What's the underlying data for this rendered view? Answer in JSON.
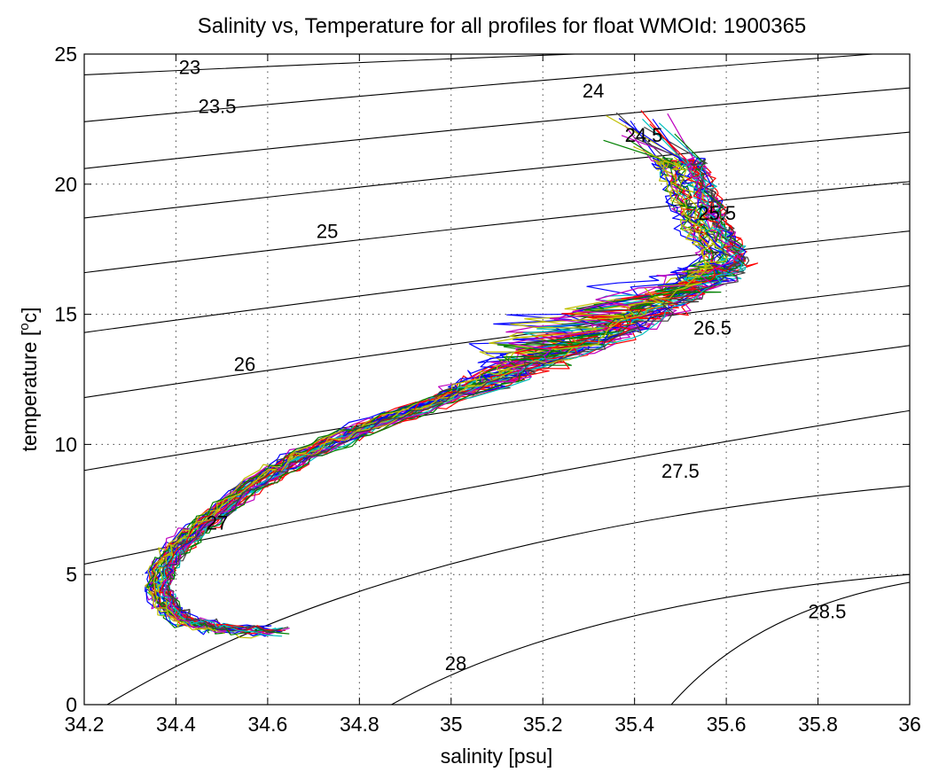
{
  "chart_data": {
    "type": "line",
    "title": "Salinity vs, Temperature for all profiles for float WMOId: 1900365",
    "xlabel": "salinity [psu]",
    "ylabel_main": "temperature [",
    "ylabel_sup": "o",
    "ylabel_tail": "c]",
    "xlim": [
      34.2,
      36
    ],
    "ylim": [
      0,
      25
    ],
    "x_ticks": [
      34.2,
      34.4,
      34.6,
      34.8,
      35,
      35.2,
      35.4,
      35.6,
      35.8,
      36
    ],
    "x_tick_labels": [
      "34.2",
      "34.4",
      "34.6",
      "34.8",
      "35",
      "35.2",
      "35.4",
      "35.6",
      "35.8",
      "36"
    ],
    "y_ticks": [
      0,
      5,
      10,
      15,
      20,
      25
    ],
    "y_tick_labels": [
      "0",
      "5",
      "10",
      "15",
      "20",
      "25"
    ],
    "grid": true,
    "contours": [
      {
        "level": "23",
        "label_at": [
          34.43,
          24.5
        ]
      },
      {
        "level": "23.5",
        "label_at": [
          34.49,
          23.0
        ]
      },
      {
        "level": "24",
        "label_at": [
          35.31,
          23.6
        ]
      },
      {
        "level": "24.5",
        "label_at": [
          35.42,
          21.9
        ]
      },
      {
        "level": "25",
        "label_at": [
          34.73,
          18.2
        ]
      },
      {
        "level": "25.5",
        "label_at": [
          35.58,
          18.9
        ]
      },
      {
        "level": "26",
        "label_at": [
          34.55,
          13.1
        ]
      },
      {
        "level": "26.5",
        "label_at": [
          35.57,
          14.5
        ]
      },
      {
        "level": "27",
        "label_at": [
          34.49,
          7.0
        ]
      },
      {
        "level": "27.5",
        "label_at": [
          35.5,
          9.0
        ]
      },
      {
        "level": "28",
        "label_at": [
          35.01,
          1.6
        ]
      },
      {
        "level": "28.5",
        "label_at": [
          35.82,
          3.6
        ]
      }
    ],
    "isopycnals_left_edge": [
      [
        34.2,
        24.2
      ],
      [
        34.2,
        22.4
      ],
      [
        34.2,
        20.6
      ],
      [
        34.2,
        18.7
      ],
      [
        34.2,
        16.6
      ],
      [
        34.2,
        14.3
      ],
      [
        34.2,
        11.8
      ],
      [
        34.2,
        9.0
      ],
      [
        34.2,
        5.4
      ],
      [
        34.25,
        0
      ],
      [
        34.87,
        0
      ],
      [
        35.48,
        0
      ]
    ],
    "isopycnals_right_edge": [
      [
        35.27,
        25.0
      ],
      [
        35.92,
        25.0
      ],
      [
        36,
        23.7
      ],
      [
        36,
        22.0
      ],
      [
        36,
        20.1
      ],
      [
        36,
        18.2
      ],
      [
        36,
        16.1
      ],
      [
        36,
        13.8
      ],
      [
        36,
        11.3
      ],
      [
        36,
        8.4
      ],
      [
        36,
        5.0
      ],
      [
        36,
        4.7
      ]
    ],
    "mean_profile": [
      [
        34.62,
        2.8
      ],
      [
        34.5,
        2.9
      ],
      [
        34.42,
        3.2
      ],
      [
        34.38,
        3.8
      ],
      [
        34.36,
        4.5
      ],
      [
        34.37,
        5.2
      ],
      [
        34.4,
        6.0
      ],
      [
        34.45,
        6.8
      ],
      [
        34.52,
        7.8
      ],
      [
        34.6,
        8.8
      ],
      [
        34.68,
        9.6
      ],
      [
        34.78,
        10.4
      ],
      [
        34.9,
        11.2
      ],
      [
        35.02,
        12.0
      ],
      [
        35.13,
        12.8
      ],
      [
        35.24,
        13.5
      ],
      [
        35.34,
        14.2
      ],
      [
        35.43,
        15.0
      ],
      [
        35.51,
        15.8
      ],
      [
        35.57,
        16.5
      ],
      [
        35.6,
        17.0
      ],
      [
        35.58,
        17.8
      ],
      [
        35.55,
        18.5
      ],
      [
        35.54,
        19.2
      ],
      [
        35.52,
        20.0
      ],
      [
        35.5,
        20.8
      ]
    ],
    "series_colors": [
      "#0000ff",
      "#008000",
      "#ff0000",
      "#00bfbf",
      "#bf00bf",
      "#bfbf00",
      "#404040"
    ],
    "profile_count": 42
  }
}
